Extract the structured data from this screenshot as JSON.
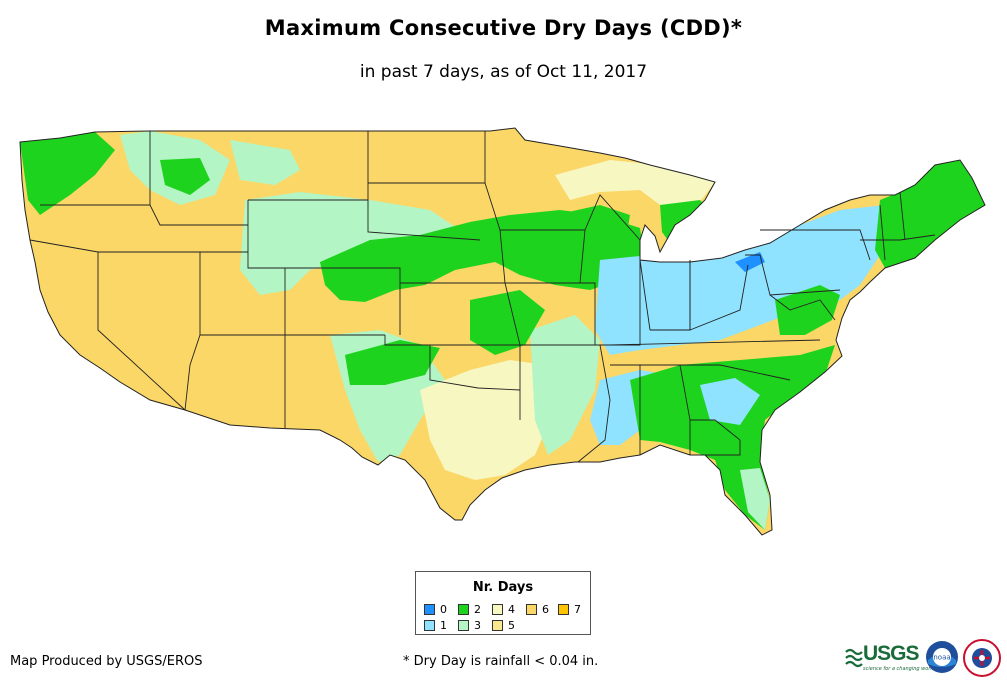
{
  "title": "Maximum Consecutive Dry Days (CDD)*",
  "subtitle": "in past 7 days, as of Oct 11, 2017",
  "legend": {
    "title": "Nr. Days",
    "items": [
      {
        "label": "0",
        "color": "#1e90ff"
      },
      {
        "label": "1",
        "color": "#8fe3ff"
      },
      {
        "label": "2",
        "color": "#1ed31e"
      },
      {
        "label": "3",
        "color": "#b3f5c4"
      },
      {
        "label": "4",
        "color": "#f7f7c2"
      },
      {
        "label": "5",
        "color": "#fbe88e"
      },
      {
        "label": "6",
        "color": "#fbd767"
      },
      {
        "label": "7",
        "color": "#ffc400"
      }
    ]
  },
  "footer": {
    "credit": "Map Produced by USGS/EROS",
    "footnote": "* Dry Day is rainfall < 0.04 in."
  },
  "logos": {
    "usgs": "USGS",
    "usgs_tagline": "science for a changing world",
    "noaa": "noaa"
  },
  "icons": {
    "usgs": "usgs-logo-icon",
    "noaa": "noaa-logo-icon",
    "nws": "nws-logo-icon"
  }
}
